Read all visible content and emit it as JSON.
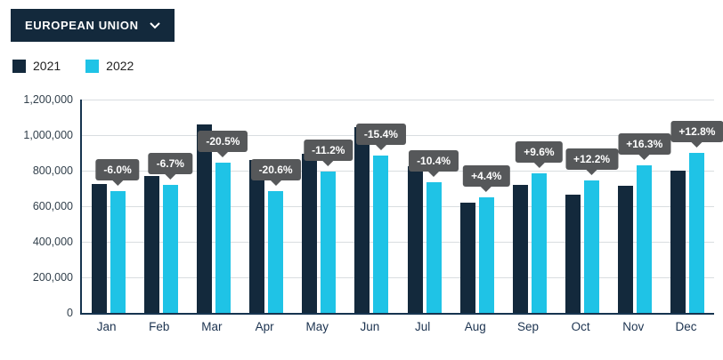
{
  "header": {
    "region_selector": {
      "label": "EUROPEAN UNION"
    }
  },
  "colors": {
    "series_2021": "#13293c",
    "series_2022": "#1fc3e6",
    "tooltip_bg": "#56585a",
    "axis": "#16344f"
  },
  "legend": {
    "items": [
      {
        "label": "2021",
        "color": "#13293c"
      },
      {
        "label": "2022",
        "color": "#1fc3e6"
      }
    ]
  },
  "chart_data": {
    "type": "bar",
    "title": "",
    "xlabel": "",
    "ylabel": "",
    "categories": [
      "Jan",
      "Feb",
      "Mar",
      "Apr",
      "May",
      "Jun",
      "Jul",
      "Aug",
      "Sep",
      "Oct",
      "Nov",
      "Dec"
    ],
    "series": [
      {
        "name": "2021",
        "color": "#13293c",
        "values": [
          726000,
          771000,
          1062000,
          862000,
          893000,
          1047000,
          823000,
          622000,
          718000,
          665000,
          713000,
          798000
        ]
      },
      {
        "name": "2022",
        "color": "#1fc3e6",
        "values": [
          683000,
          719000,
          844000,
          684000,
          793000,
          886000,
          737000,
          650000,
          787000,
          746000,
          829000,
          900000
        ]
      }
    ],
    "pct_change_labels": [
      "-6.0%",
      "-6.7%",
      "-20.5%",
      "-20.6%",
      "-11.2%",
      "-15.4%",
      "-10.4%",
      "+4.4%",
      "+9.6%",
      "+12.2%",
      "+16.3%",
      "+12.8%"
    ],
    "ylim": [
      0,
      1200000
    ],
    "y_tick_step": 200000,
    "y_tick_labels": [
      "1,200,000",
      "1,000,000",
      "800,000",
      "600,000",
      "400,000",
      "200,000",
      "0"
    ],
    "grid": true,
    "legend_position": "top-left"
  }
}
